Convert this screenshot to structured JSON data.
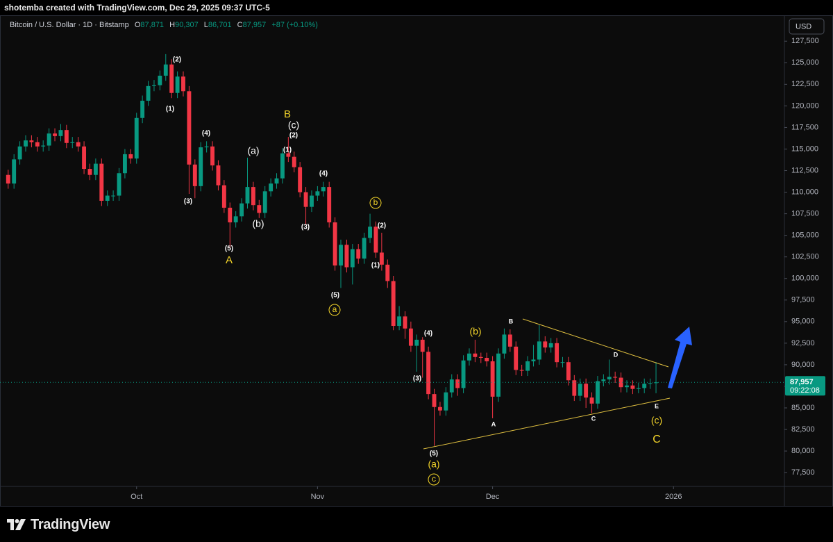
{
  "header": {
    "byline": "shotemba created with TradingView.com, Dec 29, 2025 09:37 UTC-5",
    "symbol": "Bitcoin / U.S. Dollar · 1D · Bitstamp",
    "ohlc": [
      {
        "key": "O",
        "value": "87,871"
      },
      {
        "key": "H",
        "value": "90,307"
      },
      {
        "key": "L",
        "value": "86,701"
      },
      {
        "key": "C",
        "value": "87,957"
      }
    ],
    "change": "+87 (+0.10%)"
  },
  "footer": {
    "brand": "TradingView"
  },
  "chart_data": {
    "type": "candlestick",
    "currency": "USD",
    "up_color": "#089981",
    "down_color": "#f23645",
    "grid": false,
    "x": [
      0,
      1,
      2,
      3,
      4,
      5,
      6,
      7,
      8,
      9,
      10,
      11,
      12,
      13,
      14,
      15,
      16,
      17,
      18,
      19,
      20,
      21,
      22,
      23,
      24,
      25,
      26,
      27,
      28,
      29,
      30,
      31,
      32,
      33,
      34,
      35,
      36,
      37,
      38,
      39,
      40,
      41,
      42,
      43,
      44,
      45,
      46,
      47,
      48,
      49,
      50,
      51,
      52,
      53,
      54,
      55,
      56,
      57,
      58,
      59,
      60,
      61,
      62,
      63,
      64,
      65,
      66,
      67,
      68,
      69,
      70,
      71,
      72,
      73,
      74,
      75,
      76,
      77,
      78,
      79,
      80,
      81,
      82,
      83,
      84,
      85,
      86,
      87,
      88,
      89,
      90,
      91,
      92,
      93,
      94,
      95,
      96,
      97,
      98,
      99,
      100,
      101,
      102,
      103,
      104,
      105,
      106,
      107,
      108,
      109,
      110,
      111
    ],
    "open": [
      112000,
      111000,
      113800,
      115300,
      116000,
      115800,
      115300,
      115400,
      116800,
      116500,
      117200,
      115700,
      115800,
      115300,
      112700,
      112000,
      113300,
      109000,
      109600,
      109600,
      112200,
      114400,
      113900,
      118600,
      120600,
      122300,
      122400,
      123500,
      124800,
      121500,
      123400,
      121700,
      113200,
      110700,
      115200,
      115300,
      113100,
      110800,
      108200,
      106500,
      107200,
      108700,
      110600,
      108500,
      107600,
      110100,
      111000,
      111600,
      114500,
      114100,
      112900,
      110000,
      108300,
      109600,
      110100,
      110600,
      106500,
      101500,
      103900,
      101300,
      103400,
      102300,
      104700,
      106000,
      103000,
      101600,
      99700,
      94500,
      95600,
      94200,
      92200,
      92900,
      91500,
      86600,
      85100,
      84700,
      86800,
      88300,
      87300,
      90500,
      91300,
      90900,
      90800,
      90400,
      86300,
      91300,
      93500,
      92100,
      89400,
      89300,
      90400,
      90600,
      92700,
      92000,
      92500,
      90300,
      90300,
      88200,
      86400,
      87800,
      86200,
      85500,
      88100,
      88300,
      88600,
      88500,
      87400,
      87600,
      87200,
      87300,
      87800,
      87871
    ],
    "high": [
      112600,
      114400,
      115900,
      116600,
      116600,
      116400,
      116000,
      117400,
      117400,
      117900,
      117800,
      116400,
      116400,
      115900,
      113300,
      113900,
      113900,
      110200,
      110200,
      112800,
      115000,
      115000,
      119200,
      121200,
      122900,
      123000,
      124100,
      126000,
      125400,
      124000,
      124000,
      122300,
      113800,
      115800,
      115900,
      115900,
      113700,
      111400,
      108800,
      107800,
      109300,
      114000,
      111200,
      109100,
      110700,
      111600,
      112200,
      115100,
      116400,
      114700,
      113500,
      110600,
      110200,
      110700,
      111200,
      111200,
      107100,
      104500,
      104500,
      104000,
      104000,
      105300,
      107500,
      106600,
      105300,
      102200,
      100300,
      96800,
      96200,
      95000,
      93500,
      93200,
      92100,
      87200,
      85700,
      87400,
      88900,
      88900,
      91100,
      91900,
      92900,
      91400,
      91400,
      91000,
      91900,
      94200,
      94100,
      92700,
      90000,
      91000,
      92300,
      94600,
      93300,
      93100,
      93100,
      90900,
      90900,
      88800,
      88400,
      88400,
      86800,
      88700,
      88900,
      90600,
      89200,
      89100,
      88200,
      88200,
      87900,
      88400,
      88400,
      90307
    ],
    "low": [
      110400,
      110400,
      113200,
      114700,
      115200,
      114700,
      114700,
      114800,
      115900,
      115900,
      115100,
      115100,
      114700,
      112100,
      111400,
      111400,
      108400,
      108400,
      109000,
      109000,
      111600,
      113300,
      113300,
      118000,
      120000,
      121700,
      121800,
      122900,
      120900,
      120900,
      121100,
      109800,
      109300,
      110100,
      114600,
      112500,
      110200,
      107600,
      103500,
      105900,
      106600,
      108100,
      107900,
      107000,
      107000,
      109500,
      110400,
      111000,
      113500,
      112300,
      109400,
      106300,
      107700,
      109000,
      109500,
      105900,
      100900,
      98900,
      100700,
      99300,
      101700,
      101700,
      104100,
      102400,
      100900,
      98900,
      94000,
      94000,
      93000,
      91500,
      89200,
      88500,
      86000,
      80600,
      84100,
      84100,
      86200,
      86400,
      86700,
      89900,
      90300,
      90200,
      89800,
      83800,
      85700,
      90700,
      91500,
      88800,
      88700,
      88700,
      89800,
      90000,
      91400,
      91400,
      89700,
      89700,
      87600,
      85800,
      85800,
      85000,
      84400,
      84900,
      87500,
      87700,
      87900,
      86800,
      86800,
      86600,
      86700,
      86700,
      87200,
      86701
    ],
    "close": [
      111000,
      113800,
      115300,
      116000,
      115800,
      115300,
      115400,
      116800,
      116500,
      117200,
      115700,
      115800,
      115300,
      112700,
      112000,
      113300,
      109000,
      109600,
      109600,
      112200,
      114400,
      113900,
      118600,
      120600,
      122300,
      122400,
      123500,
      124800,
      121500,
      123400,
      121700,
      113200,
      110700,
      115200,
      115300,
      113100,
      110800,
      108200,
      106500,
      107200,
      108700,
      110600,
      108500,
      107600,
      110100,
      111000,
      111600,
      114500,
      114100,
      112900,
      110000,
      108300,
      109600,
      110100,
      110600,
      106500,
      101500,
      103900,
      101300,
      103400,
      102300,
      104700,
      106000,
      103000,
      101600,
      99700,
      94500,
      95600,
      94200,
      92200,
      92900,
      91500,
      86600,
      85100,
      84700,
      86800,
      88300,
      87300,
      90500,
      91300,
      90900,
      90800,
      90400,
      86300,
      91300,
      93500,
      92100,
      89400,
      89300,
      90400,
      90600,
      92700,
      92000,
      92500,
      90300,
      90300,
      88200,
      86400,
      87800,
      86200,
      85500,
      88100,
      88300,
      88600,
      88500,
      87400,
      87600,
      87200,
      87300,
      87800,
      87871,
      87957
    ],
    "xlim": [
      -1.4,
      133
    ],
    "xticks": [
      {
        "value": 22,
        "label": "Oct"
      },
      {
        "value": 53,
        "label": "Nov"
      },
      {
        "value": 83,
        "label": "Dec"
      },
      {
        "value": 114,
        "label": "2026"
      }
    ],
    "ylim": [
      75900,
      130500
    ],
    "yticks": [
      {
        "value": 77500,
        "label": "77,500"
      },
      {
        "value": 80000,
        "label": "80,000"
      },
      {
        "value": 82500,
        "label": "82,500"
      },
      {
        "value": 85000,
        "label": "85,000"
      },
      {
        "value": 87500,
        "label": "87,500"
      },
      {
        "value": 90000,
        "label": "90,000"
      },
      {
        "value": 92500,
        "label": "92,500"
      },
      {
        "value": 95000,
        "label": "95,000"
      },
      {
        "value": 97500,
        "label": "97,500"
      },
      {
        "value": 100000,
        "label": "100,000"
      },
      {
        "value": 102500,
        "label": "102,500"
      },
      {
        "value": 105000,
        "label": "105,000"
      },
      {
        "value": 107500,
        "label": "107,500"
      },
      {
        "value": 110000,
        "label": "110,000"
      },
      {
        "value": 112500,
        "label": "112,500"
      },
      {
        "value": 115000,
        "label": "115,000"
      },
      {
        "value": 117500,
        "label": "117,500"
      },
      {
        "value": 120000,
        "label": "120,000"
      },
      {
        "value": 122500,
        "label": "122,500"
      },
      {
        "value": 125000,
        "label": "125,000"
      },
      {
        "value": 127500,
        "label": "127,500"
      }
    ],
    "last_price": {
      "value": 87957,
      "label": "87,957"
    },
    "countdown": "09:22:08",
    "annotations": [
      "(2)",
      "(1)",
      "(4)",
      "(3)",
      "(5)",
      "A",
      "(a)",
      "(b)",
      "B",
      "(c)",
      "(2)",
      "(1)",
      "(3)",
      "(4)",
      "(5)",
      "a",
      "b",
      "(2)",
      "(1)",
      "(4)",
      "(3)",
      "(b)",
      "B",
      "A",
      "D",
      "C",
      "E",
      "(c)",
      "C",
      "(5)",
      "(a)",
      "c"
    ]
  }
}
